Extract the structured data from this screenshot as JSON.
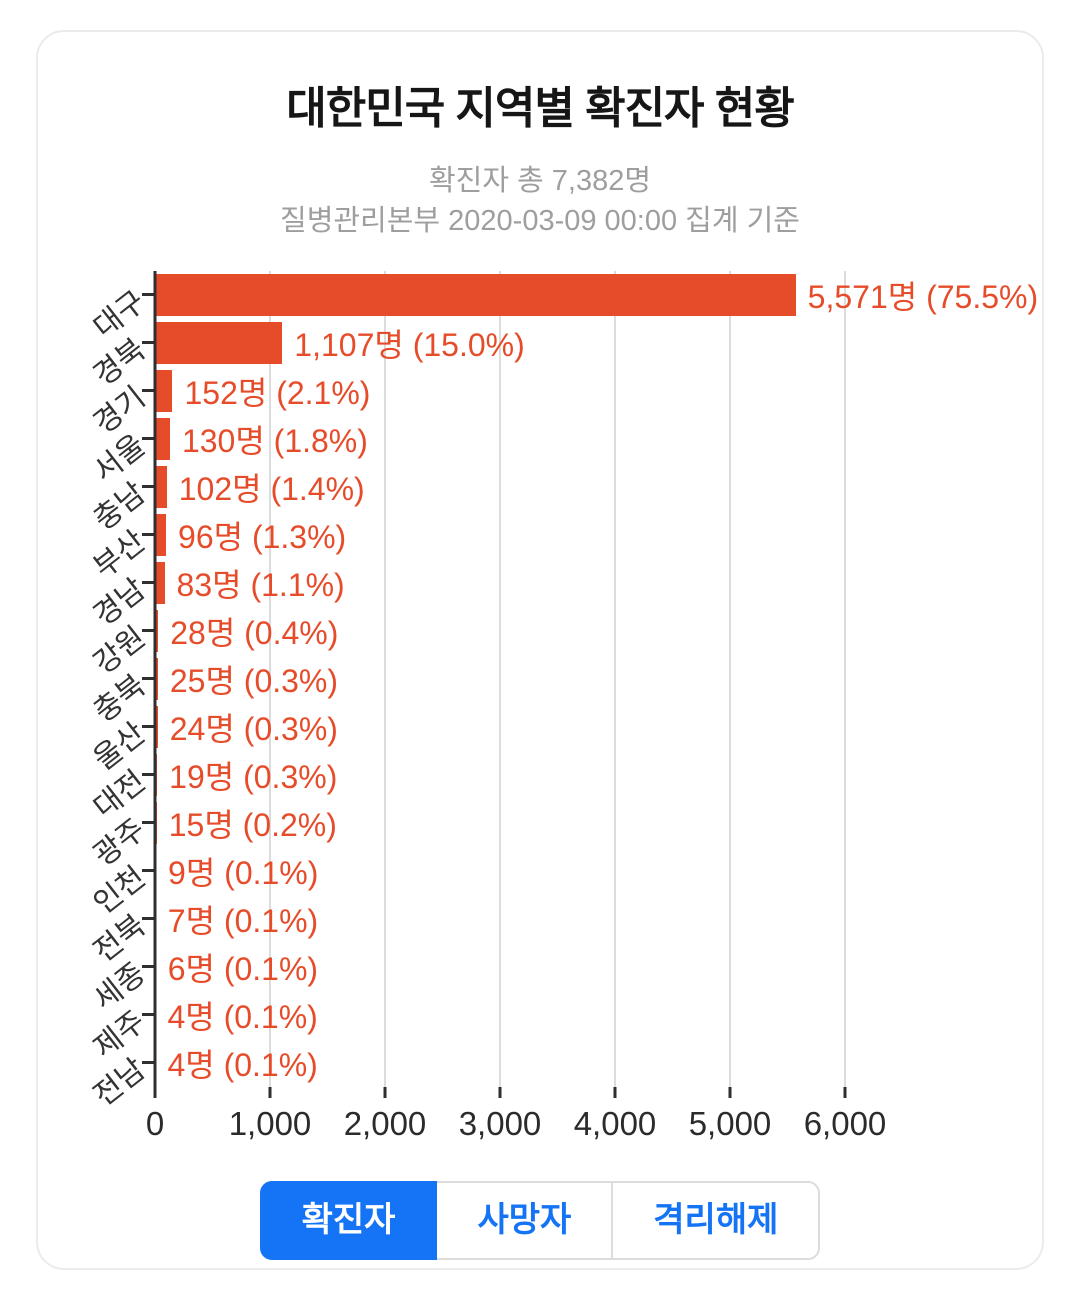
{
  "card": {
    "title": "대한민국 지역별 확진자 현황",
    "subtitle_total": "확진자 총 7,382명",
    "subtitle_source": "질병관리본부 2020-03-09 00:00 집계 기준"
  },
  "chart_data": {
    "type": "bar",
    "orientation": "horizontal",
    "title": "대한민국 지역별 확진자 현황",
    "total_label": "확진자 총 7,382명",
    "source_label": "질병관리본부 2020-03-09 00:00 집계 기준",
    "categories": [
      "대구",
      "경북",
      "경기",
      "서울",
      "충남",
      "부산",
      "경남",
      "강원",
      "충북",
      "울산",
      "대전",
      "광주",
      "인천",
      "전북",
      "세종",
      "제주",
      "전남"
    ],
    "values": [
      5571,
      1107,
      152,
      130,
      102,
      96,
      83,
      28,
      25,
      24,
      19,
      15,
      9,
      7,
      6,
      4,
      4
    ],
    "bar_labels": [
      "5,571명 (75.5%)",
      "1,107명 (15.0%)",
      "152명 (2.1%)",
      "130명 (1.8%)",
      "102명 (1.4%)",
      "96명 (1.3%)",
      "83명 (1.1%)",
      "28명 (0.4%)",
      "25명 (0.3%)",
      "24명 (0.3%)",
      "19명 (0.3%)",
      "15명 (0.2%)",
      "9명 (0.1%)",
      "7명 (0.1%)",
      "6명 (0.1%)",
      "4명 (0.1%)",
      "4명 (0.1%)"
    ],
    "xlim": [
      0,
      6000
    ],
    "xticks": [
      0,
      1000,
      2000,
      3000,
      4000,
      5000,
      6000
    ],
    "xtick_labels": [
      "0",
      "1,000",
      "2,000",
      "3,000",
      "4,000",
      "5,000",
      "6,000"
    ],
    "grid": true,
    "legend": "none",
    "bar_color": "#e74c2a",
    "label_color": "#e74c2a"
  },
  "buttons": [
    {
      "key": "confirmed",
      "label": "확진자",
      "active": true
    },
    {
      "key": "deaths",
      "label": "사망자",
      "active": false
    },
    {
      "key": "released",
      "label": "격리해제",
      "active": false
    }
  ],
  "colors": {
    "accent_blue": "#1574f6",
    "bar": "#e74c2a",
    "grid": "#dcdcdc",
    "axis": "#2f2f2f",
    "subtitle": "#9e9e9e"
  }
}
